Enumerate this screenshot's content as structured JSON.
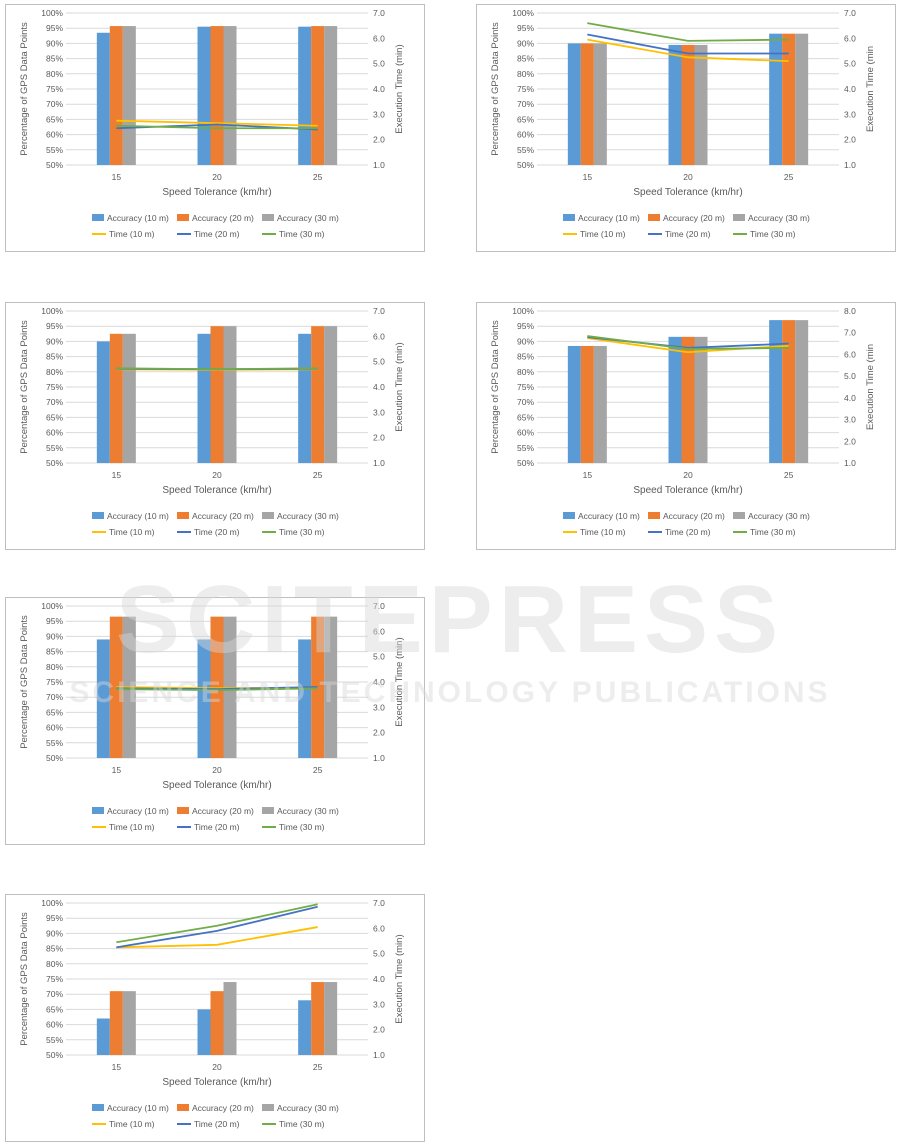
{
  "colors": {
    "accuracy_10": "#5b9bd5",
    "accuracy_20": "#ed7d31",
    "accuracy_30": "#a5a5a5",
    "time_10": "#ffc000",
    "time_20": "#4472c4",
    "time_30": "#70ad47",
    "grid": "#d9d9d9",
    "axis_text": "#595959",
    "watermark": "#c8c8c8"
  },
  "watermark": {
    "main": "SCITEPRESS",
    "sub": "SCIENCE AND TECHNOLOGY PUBLICATIONS"
  },
  "chart_data": [
    {
      "type": "bar",
      "xlabel": "Speed Tolerance (km/hr)",
      "ylabel": "Percentage of GPS Data Points",
      "y2label": "Execution Time (min)",
      "categories": [
        "15",
        "20",
        "25"
      ],
      "ylim": [
        50,
        100
      ],
      "yticks": [
        "50%",
        "55%",
        "60%",
        "65%",
        "70%",
        "75%",
        "80%",
        "85%",
        "90%",
        "95%",
        "100%"
      ],
      "y2lim": [
        1.0,
        7.0
      ],
      "y2ticks": [
        "1.0",
        "2.0",
        "3.0",
        "4.0",
        "5.0",
        "6.0",
        "7.0"
      ],
      "grid": true,
      "legend_position": "bottom",
      "series": [
        {
          "name": "Accuracy (10 m)",
          "kind": "bar",
          "values": [
            93.5,
            95.5,
            95.5
          ]
        },
        {
          "name": "Accuracy (20 m)",
          "kind": "bar",
          "values": [
            95.7,
            95.7,
            95.7
          ]
        },
        {
          "name": "Accuracy (30 m)",
          "kind": "bar",
          "values": [
            95.7,
            95.7,
            95.7
          ]
        },
        {
          "name": "Time (10 m)",
          "kind": "line",
          "values": [
            2.75,
            2.65,
            2.55
          ]
        },
        {
          "name": "Time (20 m)",
          "kind": "line",
          "values": [
            2.45,
            2.6,
            2.4
          ]
        },
        {
          "name": "Time (30 m)",
          "kind": "line",
          "values": [
            2.55,
            2.45,
            2.45
          ]
        }
      ]
    },
    {
      "type": "bar",
      "xlabel": "Speed Tolerance (km/hr)",
      "ylabel": "Percentage of GPS Data Points",
      "y2label": "Execution Time (min",
      "categories": [
        "15",
        "20",
        "25"
      ],
      "ylim": [
        50,
        100
      ],
      "yticks": [
        "50%",
        "55%",
        "60%",
        "65%",
        "70%",
        "75%",
        "80%",
        "85%",
        "90%",
        "95%",
        "100%"
      ],
      "y2lim": [
        1.0,
        7.0
      ],
      "y2ticks": [
        "1.0",
        "2.0",
        "3.0",
        "4.0",
        "5.0",
        "6.0",
        "7.0"
      ],
      "grid": true,
      "legend_position": "bottom",
      "series": [
        {
          "name": "Accuracy (10 m)",
          "kind": "bar",
          "values": [
            90,
            89.5,
            93.2
          ]
        },
        {
          "name": "Accuracy (20 m)",
          "kind": "bar",
          "values": [
            90,
            89.5,
            93.2
          ]
        },
        {
          "name": "Accuracy (30 m)",
          "kind": "bar",
          "values": [
            90,
            89.5,
            93.2
          ]
        },
        {
          "name": "Time (10 m)",
          "kind": "line",
          "values": [
            5.95,
            5.25,
            5.1
          ]
        },
        {
          "name": "Time (20 m)",
          "kind": "line",
          "values": [
            6.15,
            5.4,
            5.4
          ]
        },
        {
          "name": "Time (30 m)",
          "kind": "line",
          "values": [
            6.6,
            5.9,
            5.95
          ]
        }
      ]
    },
    {
      "type": "bar",
      "xlabel": "Speed Tolerance (km/hr)",
      "ylabel": "Percentage of GPS Data Points",
      "y2label": "Execution Time (min)",
      "categories": [
        "15",
        "20",
        "25"
      ],
      "ylim": [
        50,
        100
      ],
      "yticks": [
        "50%",
        "55%",
        "60%",
        "65%",
        "70%",
        "75%",
        "80%",
        "85%",
        "90%",
        "95%",
        "100%"
      ],
      "y2lim": [
        1.0,
        7.0
      ],
      "y2ticks": [
        "1.0",
        "2.0",
        "3.0",
        "4.0",
        "5.0",
        "6.0",
        "7.0"
      ],
      "grid": true,
      "legend_position": "bottom",
      "series": [
        {
          "name": "Accuracy (10 m)",
          "kind": "bar",
          "values": [
            90,
            92.5,
            92.5
          ]
        },
        {
          "name": "Accuracy (20 m)",
          "kind": "bar",
          "values": [
            92.5,
            95,
            95
          ]
        },
        {
          "name": "Accuracy (30 m)",
          "kind": "bar",
          "values": [
            92.5,
            95,
            95
          ]
        },
        {
          "name": "Time (10 m)",
          "kind": "line",
          "values": [
            4.7,
            4.68,
            4.7
          ]
        },
        {
          "name": "Time (20 m)",
          "kind": "line",
          "values": [
            4.72,
            4.7,
            4.72
          ]
        },
        {
          "name": "Time (30 m)",
          "kind": "line",
          "values": [
            4.74,
            4.7,
            4.74
          ]
        }
      ]
    },
    {
      "type": "bar",
      "xlabel": "Speed Tolerance (km/hr)",
      "ylabel": "Percentage of GPS Data Points",
      "y2label": "Execution Time (min",
      "categories": [
        "15",
        "20",
        "25"
      ],
      "ylim": [
        50,
        100
      ],
      "yticks": [
        "50%",
        "55%",
        "60%",
        "65%",
        "70%",
        "75%",
        "80%",
        "85%",
        "90%",
        "95%",
        "100%"
      ],
      "y2lim": [
        1.0,
        8.0
      ],
      "y2ticks": [
        "1.0",
        "2.0",
        "3.0",
        "4.0",
        "5.0",
        "6.0",
        "7.0",
        "8.0"
      ],
      "grid": true,
      "legend_position": "bottom",
      "series": [
        {
          "name": "Accuracy (10 m)",
          "kind": "bar",
          "values": [
            88.5,
            91.5,
            97
          ]
        },
        {
          "name": "Accuracy (20 m)",
          "kind": "bar",
          "values": [
            88.5,
            91.5,
            97
          ]
        },
        {
          "name": "Accuracy (30 m)",
          "kind": "bar",
          "values": [
            88.5,
            91.5,
            97
          ]
        },
        {
          "name": "Time (10 m)",
          "kind": "line",
          "values": [
            6.75,
            6.1,
            6.4
          ]
        },
        {
          "name": "Time (20 m)",
          "kind": "line",
          "values": [
            6.8,
            6.3,
            6.5
          ]
        },
        {
          "name": "Time (30 m)",
          "kind": "line",
          "values": [
            6.85,
            6.25,
            6.3
          ]
        }
      ]
    },
    {
      "type": "bar",
      "xlabel": "Speed Tolerance (km/hr)",
      "ylabel": "Percentage of GPS Data Points",
      "y2label": "Execution Time (min)",
      "categories": [
        "15",
        "20",
        "25"
      ],
      "ylim": [
        50,
        100
      ],
      "yticks": [
        "50%",
        "55%",
        "60%",
        "65%",
        "70%",
        "75%",
        "80%",
        "85%",
        "90%",
        "95%",
        "100%"
      ],
      "y2lim": [
        1.0,
        7.0
      ],
      "y2ticks": [
        "1.0",
        "2.0",
        "3.0",
        "4.0",
        "5.0",
        "6.0",
        "7.0"
      ],
      "grid": true,
      "legend_position": "bottom",
      "series": [
        {
          "name": "Accuracy (10 m)",
          "kind": "bar",
          "values": [
            89,
            89,
            89
          ]
        },
        {
          "name": "Accuracy (20 m)",
          "kind": "bar",
          "values": [
            96.5,
            96.5,
            96.5
          ]
        },
        {
          "name": "Accuracy (30 m)",
          "kind": "bar",
          "values": [
            96.5,
            96.5,
            96.5
          ]
        },
        {
          "name": "Time (10 m)",
          "kind": "line",
          "values": [
            3.8,
            3.75,
            3.78
          ]
        },
        {
          "name": "Time (20 m)",
          "kind": "line",
          "values": [
            3.75,
            3.72,
            3.8
          ]
        },
        {
          "name": "Time (30 m)",
          "kind": "line",
          "values": [
            3.72,
            3.68,
            3.75
          ]
        }
      ]
    },
    {
      "type": "bar",
      "xlabel": "Speed Tolerance (km/hr)",
      "ylabel": "Percentage of GPS Data Points",
      "y2label": "Execution Time (min)",
      "categories": [
        "15",
        "20",
        "25"
      ],
      "ylim": [
        50,
        100
      ],
      "yticks": [
        "50%",
        "55%",
        "60%",
        "65%",
        "70%",
        "75%",
        "80%",
        "85%",
        "90%",
        "95%",
        "100%"
      ],
      "y2lim": [
        1.0,
        7.0
      ],
      "y2ticks": [
        "1.0",
        "2.0",
        "3.0",
        "4.0",
        "5.0",
        "6.0",
        "7.0"
      ],
      "grid": true,
      "legend_position": "bottom",
      "series": [
        {
          "name": "Accuracy (10 m)",
          "kind": "bar",
          "values": [
            62,
            65,
            68
          ]
        },
        {
          "name": "Accuracy (20 m)",
          "kind": "bar",
          "values": [
            71,
            71,
            74
          ]
        },
        {
          "name": "Accuracy (30 m)",
          "kind": "bar",
          "values": [
            71,
            74,
            74
          ]
        },
        {
          "name": "Time (10 m)",
          "kind": "line",
          "values": [
            5.25,
            5.35,
            6.05
          ]
        },
        {
          "name": "Time (20 m)",
          "kind": "line",
          "values": [
            5.25,
            5.9,
            6.85
          ]
        },
        {
          "name": "Time (30 m)",
          "kind": "line",
          "values": [
            5.45,
            6.1,
            6.95
          ]
        }
      ]
    }
  ]
}
